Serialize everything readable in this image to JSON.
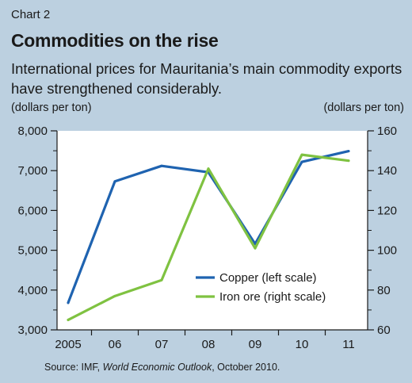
{
  "header": {
    "chart_number": "Chart 2",
    "title": "Commodities on the rise",
    "subtitle": "International prices for Mauritania’s main commodity exports have strengthened considerably."
  },
  "footer": {
    "source_prefix": "Source: IMF, ",
    "source_italic": "World Economic Outlook",
    "source_suffix": ", October 2010."
  },
  "colors": {
    "background": "#bcd0e0",
    "plot_background": "#ffffff",
    "copper": "#1f63b0",
    "iron_ore": "#7fc241",
    "axis": "#1a1a1a"
  },
  "chart_data": {
    "type": "line",
    "title": "Commodities on the rise",
    "subtitle": "International prices for Mauritania’s main commodity exports have strengthened considerably.",
    "categories": [
      "2005",
      "06",
      "07",
      "08",
      "09",
      "10",
      "11"
    ],
    "y_left": {
      "label": "(dollars per ton)",
      "range": [
        3000,
        8000
      ],
      "ticks": [
        3000,
        4000,
        5000,
        6000,
        7000,
        8000
      ],
      "tick_labels": [
        "3,000",
        "4,000",
        "5,000",
        "6,000",
        "7,000",
        "8,000"
      ]
    },
    "y_right": {
      "label": "(dollars per ton)",
      "range": [
        60,
        160
      ],
      "ticks": [
        60,
        80,
        100,
        120,
        140,
        160
      ],
      "tick_labels": [
        "60",
        "80",
        "100",
        "120",
        "140",
        "160"
      ]
    },
    "series": [
      {
        "name": "Copper (left scale)",
        "axis": "left",
        "color": "#1f63b0",
        "values": [
          3680,
          6730,
          7120,
          6960,
          5160,
          7220,
          7490
        ]
      },
      {
        "name": "Iron ore (right scale)",
        "axis": "right",
        "color": "#7fc241",
        "values": [
          65,
          77,
          85,
          141,
          101,
          148,
          145
        ]
      }
    ],
    "grid": false,
    "legend_position": "lower-center"
  }
}
